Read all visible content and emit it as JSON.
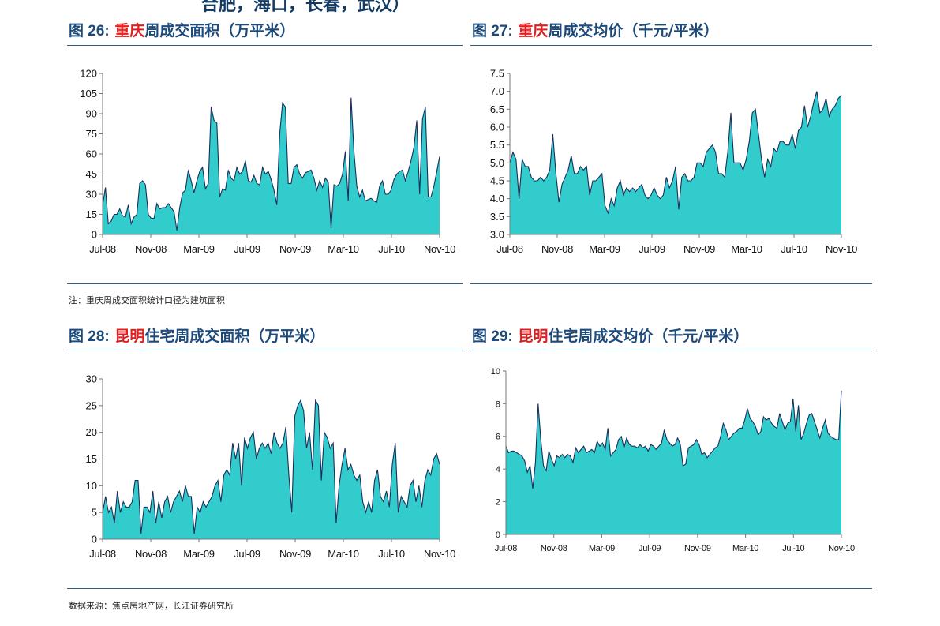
{
  "header_fragment": "合肥，海口，长春，武汉）",
  "figures": [
    {
      "label": "图 26:",
      "city": "重庆",
      "rest": "周成交面积（万平米）"
    },
    {
      "label": "图 27:",
      "city": "重庆",
      "rest": "周成交均价（千元/平米）"
    },
    {
      "label": "图 28:",
      "city": "昆明",
      "rest": "住宅周成交面积（万平米）"
    },
    {
      "label": "图 29:",
      "city": "昆明",
      "rest": "住宅周成交均价（千元/平米）"
    }
  ],
  "note": "注：重庆周成交面积统计口径为建筑面积",
  "source": "数据来源：焦点房地产网，长江证券研究所",
  "colors": {
    "fill": "#33CCCC",
    "line": "#1a2f5c",
    "title": "#1c4a7a",
    "accent": "#e02020",
    "rule": "#2b5f8a"
  },
  "chart_data": [
    {
      "type": "area",
      "title": "重庆周成交面积（万平米）",
      "x_ticks": [
        "Jul-08",
        "Nov-08",
        "Mar-09",
        "Jul-09",
        "Nov-09",
        "Mar-10",
        "Jul-10",
        "Nov-10"
      ],
      "y_ticks": [
        "0",
        "15",
        "30",
        "45",
        "60",
        "75",
        "90",
        "105",
        "120"
      ],
      "ylim": [
        0,
        120
      ],
      "values": [
        22,
        35,
        8,
        10,
        15,
        15,
        19,
        14,
        13,
        22,
        8,
        13,
        15,
        38,
        40,
        37,
        15,
        12,
        12,
        23,
        19,
        20,
        20,
        23,
        20,
        17,
        3,
        20,
        31,
        33,
        48,
        40,
        31,
        40,
        47,
        50,
        34,
        38,
        95,
        85,
        83,
        28,
        34,
        33,
        48,
        42,
        40,
        50,
        45,
        47,
        55,
        40,
        39,
        44,
        38,
        37,
        50,
        45,
        47,
        41,
        33,
        22,
        75,
        98,
        95,
        38,
        38,
        50,
        52,
        45,
        42,
        46,
        47,
        48,
        42,
        33,
        40,
        35,
        42,
        39,
        5,
        37,
        36,
        38,
        45,
        62,
        25,
        102,
        62,
        36,
        28,
        33,
        25,
        26,
        27,
        25,
        24,
        36,
        40,
        30,
        30,
        33,
        41,
        45,
        47,
        48,
        40,
        47,
        55,
        65,
        85,
        30,
        86,
        95,
        28,
        28,
        36,
        47,
        58
      ]
    },
    {
      "type": "area",
      "title": "重庆周成交均价（千元/平米）",
      "x_ticks": [
        "Jul-08",
        "Nov-08",
        "Mar-09",
        "Jul-09",
        "Nov-09",
        "Mar-10",
        "Jul-10",
        "Nov-10"
      ],
      "y_ticks": [
        "3.0",
        "3.5",
        "4.0",
        "4.5",
        "5.0",
        "5.5",
        "6.0",
        "6.5",
        "7.0",
        "7.5"
      ],
      "ylim": [
        3.0,
        7.5
      ],
      "values": [
        5.0,
        5.3,
        5.1,
        4.0,
        5.1,
        4.9,
        4.9,
        4.6,
        4.5,
        4.5,
        4.6,
        4.5,
        4.6,
        4.8,
        5.8,
        4.7,
        3.9,
        4.4,
        4.6,
        4.8,
        5.2,
        4.7,
        4.7,
        4.9,
        4.8,
        4.9,
        4.1,
        4.5,
        4.5,
        4.6,
        4.7,
        3.8,
        3.6,
        4.0,
        3.8,
        4.3,
        4.5,
        4.1,
        4.3,
        4.2,
        4.3,
        4.2,
        4.3,
        4.4,
        4.1,
        4.0,
        4.1,
        4.3,
        4.1,
        4.0,
        4.1,
        4.6,
        4.3,
        4.5,
        4.9,
        3.7,
        4.6,
        4.7,
        4.5,
        4.5,
        4.6,
        5.0,
        5.0,
        4.9,
        5.3,
        5.4,
        5.5,
        5.3,
        4.7,
        4.7,
        4.6,
        5.3,
        6.4,
        5.0,
        5.0,
        5.0,
        4.8,
        5.1,
        5.6,
        6.4,
        6.5,
        5.8,
        5.1,
        4.6,
        5.1,
        4.9,
        5.4,
        5.3,
        5.6,
        5.6,
        5.5,
        5.5,
        5.8,
        5.4,
        5.9,
        6.0,
        6.6,
        6.0,
        6.3,
        6.7,
        7.0,
        6.4,
        6.5,
        6.8,
        6.3,
        6.5,
        6.6,
        6.8,
        6.9
      ]
    },
    {
      "type": "area",
      "title": "昆明住宅周成交面积（万平米）",
      "x_ticks": [
        "Jul-08",
        "Nov-08",
        "Mar-09",
        "Jul-09",
        "Nov-09",
        "Mar-10",
        "Jul-10",
        "Nov-10"
      ],
      "y_ticks": [
        "0",
        "5",
        "10",
        "15",
        "20",
        "25",
        "30"
      ],
      "ylim": [
        0,
        30
      ],
      "values": [
        5,
        8,
        5,
        6,
        3,
        9,
        5,
        7,
        6,
        6,
        7,
        11,
        11,
        1,
        6,
        6,
        5,
        9,
        3,
        7,
        4,
        7,
        8,
        5,
        7,
        8,
        9,
        7,
        10,
        8,
        8,
        1,
        6,
        5,
        7,
        6,
        7,
        8,
        10,
        11,
        7,
        12,
        13,
        12,
        18,
        15,
        18,
        10,
        19,
        17,
        19,
        20,
        15,
        17,
        18,
        17,
        18,
        16,
        20,
        18,
        17,
        18,
        21,
        12,
        5,
        23,
        25,
        26,
        24,
        17,
        20,
        13,
        26,
        25,
        11,
        20,
        19,
        17,
        18,
        3,
        10,
        14,
        17,
        13,
        14,
        12,
        11,
        12,
        7,
        5,
        7,
        5,
        11,
        13,
        8,
        7,
        9,
        6,
        14,
        18,
        5,
        8,
        7,
        6,
        10,
        11,
        7,
        10,
        6,
        11,
        13,
        12,
        15,
        16,
        14
      ]
    },
    {
      "type": "area",
      "title": "昆明住宅周成交均价（千元/平米）",
      "x_ticks": [
        "Jul-08",
        "Nov-08",
        "Mar-09",
        "Jul-09",
        "Nov-09",
        "Mar-10",
        "Jul-10",
        "Nov-10"
      ],
      "y_ticks": [
        "0",
        "2",
        "4",
        "6",
        "8",
        "10"
      ],
      "ylim": [
        0,
        10
      ],
      "values": [
        5.4,
        5.0,
        5.1,
        5.1,
        5.0,
        4.9,
        4.8,
        4.5,
        3.8,
        4.2,
        2.8,
        4.4,
        8.0,
        5.8,
        4.2,
        3.9,
        5.1,
        4.6,
        4.2,
        4.8,
        4.7,
        4.9,
        4.7,
        4.9,
        4.8,
        4.4,
        5.3,
        5.0,
        5.2,
        5.4,
        5.0,
        5.1,
        5.2,
        5.0,
        5.7,
        5.4,
        5.6,
        5.2,
        6.5,
        4.8,
        5.0,
        5.2,
        5.8,
        6.0,
        5.3,
        5.9,
        5.5,
        5.4,
        5.4,
        5.3,
        5.5,
        5.3,
        5.4,
        5.1,
        5.5,
        5.4,
        5.2,
        5.4,
        5.6,
        6.4,
        5.8,
        5.6,
        5.4,
        5.5,
        5.9,
        5.5,
        4.2,
        4.3,
        5.3,
        5.4,
        5.5,
        5.8,
        5.5,
        4.9,
        5.0,
        4.7,
        4.9,
        5.1,
        5.3,
        5.4,
        6.0,
        6.8,
        6.4,
        5.8,
        6.0,
        6.2,
        6.3,
        6.5,
        6.5,
        7.0,
        7.7,
        7.1,
        6.9,
        6.6,
        6.1,
        6.3,
        7.2,
        7.0,
        7.1,
        6.8,
        6.6,
        6.5,
        7.4,
        6.9,
        6.4,
        6.8,
        6.9,
        8.3,
        6.3,
        7.9,
        5.8,
        6.2,
        6.8,
        7.3,
        7.4,
        6.9,
        6.4,
        5.9,
        6.5,
        7.0,
        6.2,
        6.0,
        5.9,
        5.8,
        5.8,
        8.8
      ]
    }
  ]
}
